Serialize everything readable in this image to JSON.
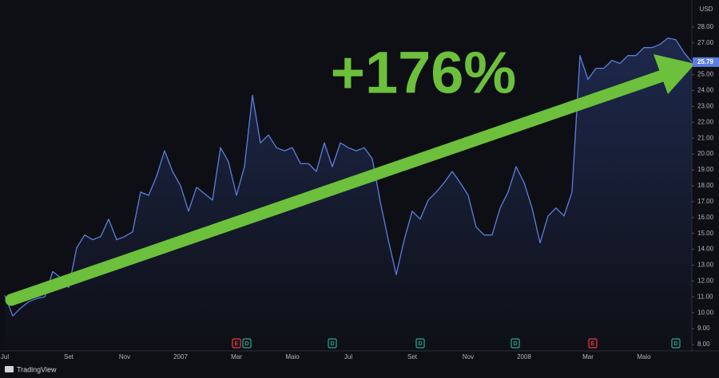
{
  "chart_data": {
    "type": "line",
    "currency": "USD",
    "annotation": "+176%",
    "brand": "TradingView",
    "categories": [
      "Jul",
      null,
      null,
      null,
      null,
      null,
      null,
      null,
      "Set",
      null,
      null,
      null,
      null,
      null,
      null,
      "Nov",
      null,
      null,
      null,
      null,
      null,
      null,
      "2007",
      null,
      null,
      null,
      null,
      null,
      null,
      "Mar",
      null,
      null,
      null,
      null,
      null,
      null,
      "Maio",
      null,
      null,
      null,
      null,
      null,
      null,
      "Jul",
      null,
      null,
      null,
      null,
      null,
      null,
      null,
      "Set",
      null,
      null,
      null,
      null,
      null,
      null,
      "Nov",
      null,
      null,
      null,
      null,
      null,
      null,
      "2008",
      null,
      null,
      null,
      null,
      null,
      null,
      null,
      "Mar",
      null,
      null,
      null,
      null,
      null,
      null,
      "Maio",
      null,
      null,
      null,
      null,
      null,
      null
    ],
    "series": [
      {
        "color": "#5b7fe0",
        "values": [
          11.1,
          9.8,
          10.3,
          10.7,
          10.9,
          11.0,
          12.6,
          12.2,
          11.6,
          14.1,
          14.9,
          14.6,
          14.8,
          15.9,
          14.6,
          14.8,
          15.1,
          17.6,
          17.4,
          18.6,
          20.2,
          18.9,
          18.0,
          16.4,
          17.9,
          17.5,
          17.1,
          20.4,
          19.5,
          17.4,
          19.2,
          23.7,
          20.7,
          21.2,
          20.4,
          20.2,
          20.4,
          19.4,
          19.4,
          18.9,
          20.7,
          19.2,
          20.7,
          20.4,
          20.2,
          20.4,
          19.7,
          17.0,
          14.6,
          12.4,
          14.6,
          16.4,
          15.9,
          17.1,
          17.6,
          18.2,
          18.9,
          18.2,
          17.4,
          15.4,
          14.9,
          14.9,
          16.6,
          17.6,
          19.2,
          18.2,
          16.6,
          14.4,
          16.1,
          16.6,
          16.1,
          17.6,
          26.2,
          24.7,
          25.4,
          25.4,
          25.9,
          25.7,
          26.2,
          26.2,
          26.7,
          26.7,
          26.9,
          27.3,
          27.2,
          26.4,
          25.79
        ]
      }
    ],
    "ylim": [
      7.6,
      29.7
    ],
    "yticks": [
      {
        "value": 8,
        "label": "8.00"
      },
      {
        "value": 9,
        "label": "9.00"
      },
      {
        "value": 10,
        "label": "10.00"
      },
      {
        "value": 11,
        "label": "11.00"
      },
      {
        "value": 12,
        "label": "12.00"
      },
      {
        "value": 13,
        "label": "13.00"
      },
      {
        "value": 14,
        "label": "14.00"
      },
      {
        "value": 15,
        "label": "15.00"
      },
      {
        "value": 16,
        "label": "16.00"
      },
      {
        "value": 17,
        "label": "17.00"
      },
      {
        "value": 18,
        "label": "18.00"
      },
      {
        "value": 19,
        "label": "19.00"
      },
      {
        "value": 20,
        "label": "20.00"
      },
      {
        "value": 21,
        "label": "21.00"
      },
      {
        "value": 22,
        "label": "22.00"
      },
      {
        "value": 23,
        "label": "23.00"
      },
      {
        "value": 24,
        "label": "24.00"
      },
      {
        "value": 25,
        "label": "25.00"
      },
      {
        "value": 27,
        "label": "27.00"
      },
      {
        "value": 28,
        "label": "28.00"
      }
    ],
    "grid": false,
    "events": [
      {
        "label": "E",
        "color": "#f23645"
      },
      {
        "label": "D",
        "color": "#22ab94"
      },
      {
        "label": "D",
        "color": "#22ab94"
      },
      {
        "label": "D",
        "color": "#22ab94"
      },
      {
        "label": "D",
        "color": "#22ab94"
      },
      {
        "label": "E",
        "color": "#f23645"
      },
      {
        "label": "D",
        "color": "#22ab94"
      }
    ]
  }
}
